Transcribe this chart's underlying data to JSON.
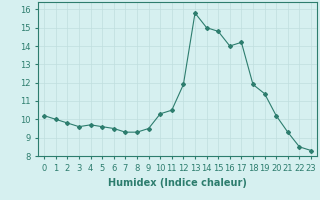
{
  "x": [
    0,
    1,
    2,
    3,
    4,
    5,
    6,
    7,
    8,
    9,
    10,
    11,
    12,
    13,
    14,
    15,
    16,
    17,
    18,
    19,
    20,
    21,
    22,
    23
  ],
  "y": [
    10.2,
    10.0,
    9.8,
    9.6,
    9.7,
    9.6,
    9.5,
    9.3,
    9.3,
    9.5,
    10.3,
    10.5,
    11.9,
    15.8,
    15.0,
    14.8,
    14.0,
    14.2,
    11.9,
    11.4,
    10.2,
    9.3,
    8.5,
    8.3
  ],
  "xlabel": "Humidex (Indice chaleur)",
  "ylabel": "",
  "xlim": [
    -0.5,
    23.5
  ],
  "ylim": [
    8,
    16.4
  ],
  "yticks": [
    8,
    9,
    10,
    11,
    12,
    13,
    14,
    15,
    16
  ],
  "xticks": [
    0,
    1,
    2,
    3,
    4,
    5,
    6,
    7,
    8,
    9,
    10,
    11,
    12,
    13,
    14,
    15,
    16,
    17,
    18,
    19,
    20,
    21,
    22,
    23
  ],
  "line_color": "#2d7d6e",
  "marker": "D",
  "marker_size": 2,
  "bg_color": "#d6f0f0",
  "grid_color": "#c0dede",
  "label_fontsize": 7,
  "tick_fontsize": 6
}
